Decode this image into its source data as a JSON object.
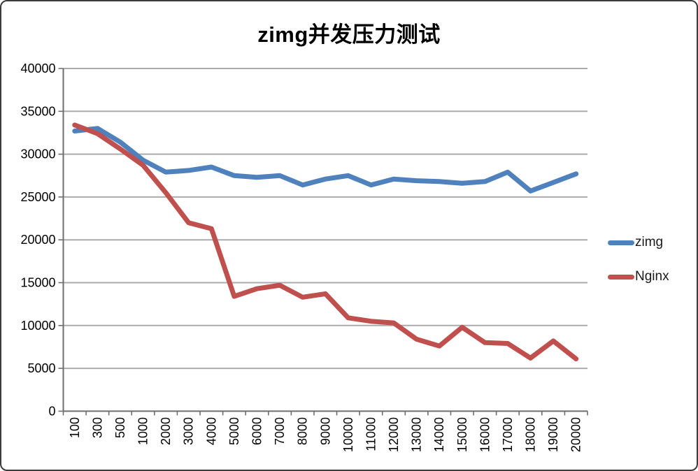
{
  "title": "zimg并发压力测试",
  "legend": [
    {
      "label": "zimg",
      "color": "#4F81BD"
    },
    {
      "label": "Nginx",
      "color": "#C0504D"
    }
  ],
  "colors": {
    "grid": "#ABABAB",
    "axis": "#6E6E6E",
    "tick_text": "#000000",
    "background": "#FFFFFF",
    "border": "#3C3C3C"
  },
  "chart_data": {
    "type": "line",
    "title": "zimg并发压力测试",
    "xlabel": "",
    "ylabel": "",
    "categories": [
      "100",
      "300",
      "500",
      "1000",
      "2000",
      "3000",
      "4000",
      "5000",
      "6000",
      "7000",
      "8000",
      "9000",
      "10000",
      "11000",
      "12000",
      "13000",
      "14000",
      "15000",
      "16000",
      "17000",
      "18000",
      "19000",
      "20000"
    ],
    "series": [
      {
        "name": "zimg",
        "color": "#4F81BD",
        "values": [
          32700,
          33000,
          31400,
          29300,
          27900,
          28100,
          28500,
          27500,
          27300,
          27500,
          26400,
          27100,
          27500,
          26400,
          27100,
          26900,
          26800,
          26600,
          26800,
          27900,
          25700,
          26700,
          27700
        ]
      },
      {
        "name": "Nginx",
        "color": "#C0504D",
        "values": [
          33400,
          32400,
          30600,
          28700,
          25500,
          22000,
          21300,
          13400,
          14300,
          14700,
          13300,
          13700,
          10900,
          10500,
          10300,
          8400,
          7600,
          9800,
          8000,
          7900,
          6200,
          8200,
          6100
        ]
      }
    ],
    "ylim": [
      0,
      40000
    ],
    "y_tick_step": 5000,
    "y_tick_labels": [
      "0",
      "5000",
      "10000",
      "15000",
      "20000",
      "25000",
      "30000",
      "35000",
      "40000"
    ],
    "grid": true,
    "legend_position": "right",
    "x_tick_rotation": -90
  }
}
